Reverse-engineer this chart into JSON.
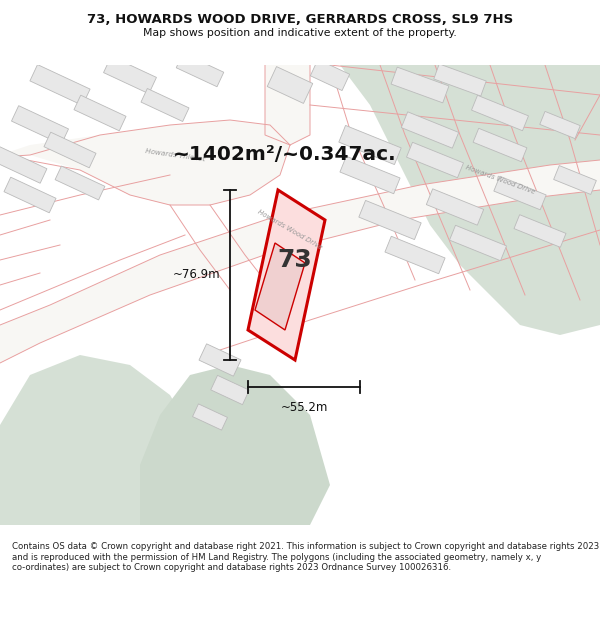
{
  "title_line1": "73, HOWARDS WOOD DRIVE, GERRARDS CROSS, SL9 7HS",
  "title_line2": "Map shows position and indicative extent of the property.",
  "area_text": "~1402m²/~0.347ac.",
  "number_text": "73",
  "width_label": "~55.2m",
  "height_label": "~76.9m",
  "footer_text": "Contains OS data © Crown copyright and database right 2021. This information is subject to Crown copyright and database rights 2023 and is reproduced with the permission of HM Land Registry. The polygons (including the associated geometry, namely x, y co-ordinates) are subject to Crown copyright and database rights 2023 Ordnance Survey 100026316.",
  "map_bg": "#f5f5f5",
  "road_bg": "#f0eeeb",
  "building_fill": "#e8e8e8",
  "building_stroke": "#bbbbbb",
  "highlight_fill": "#fcdede",
  "highlight_stroke": "#cc0000",
  "green1": "#d5e0d5",
  "green2": "#ccd9cc",
  "road_line_color": "#e8a0a0",
  "road_label_color": "#999999",
  "dim_line_color": "#111111",
  "title_color": "#111111",
  "footer_color": "#222222"
}
